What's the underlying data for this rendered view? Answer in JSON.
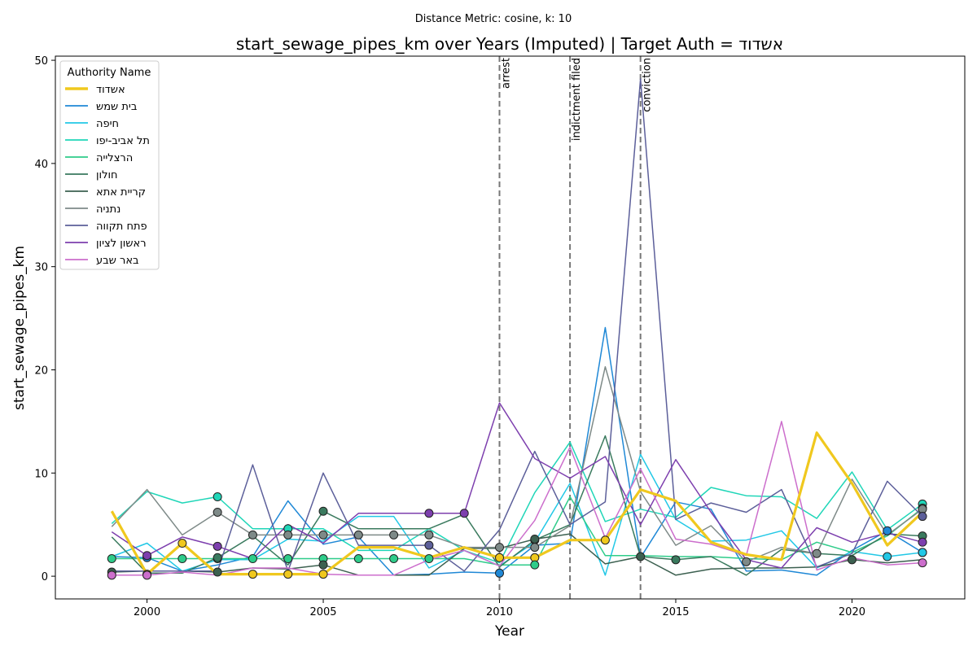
{
  "suptitle": "Distance Metric: cosine, k: 10",
  "chart_data": {
    "type": "line",
    "title": "start_sewage_pipes_km over Years (Imputed) | Target Auth = אשדוד",
    "xlabel": "Year",
    "ylabel": "start_sewage_pipes_km",
    "xlim": [
      1997.4,
      2023.2
    ],
    "ylim": [
      -2.2,
      50.4
    ],
    "x_ticks": [
      2000,
      2005,
      2010,
      2015,
      2020
    ],
    "y_ticks": [
      0,
      10,
      20,
      30,
      40,
      50
    ],
    "grid": false,
    "legend": {
      "title": "Authority Name",
      "placement": "upper-left"
    },
    "x": [
      1999,
      2000,
      2001,
      2002,
      2003,
      2004,
      2005,
      2006,
      2007,
      2008,
      2009,
      2010,
      2011,
      2012,
      2013,
      2014,
      2015,
      2016,
      2017,
      2018,
      2019,
      2020,
      2021,
      2022
    ],
    "events": [
      {
        "label": "arrest",
        "x": 2010
      },
      {
        "label": "indictment filed",
        "x": 2012
      },
      {
        "label": "conviction",
        "x": 2014
      }
    ],
    "series": [
      {
        "name": "אשדוד",
        "color": "#f0c81e",
        "width": 3.2,
        "target": true,
        "values": [
          6.3,
          0.2,
          3.2,
          0.2,
          0.2,
          0.2,
          0.2,
          2.8,
          2.8,
          1.8,
          2.8,
          1.8,
          1.8,
          3.5,
          3.5,
          8.4,
          7.3,
          3.3,
          2.1,
          1.6,
          13.9,
          9.0,
          3.0,
          6.2
        ],
        "imputed": [
          1,
          2,
          4,
          5,
          6,
          11,
          12,
          14
        ]
      },
      {
        "name": "בית שמש",
        "color": "#1f88d6",
        "width": 1.5,
        "values": [
          1.9,
          1.8,
          0.5,
          1.1,
          1.9,
          7.3,
          3.1,
          3.8,
          0.1,
          0.2,
          0.4,
          0.3,
          3.0,
          3.2,
          24.1,
          1.8,
          7.2,
          6.5,
          0.5,
          0.6,
          0.1,
          2.5,
          4.4,
          2.3
        ],
        "imputed": [
          1,
          11,
          22,
          23
        ]
      },
      {
        "name": "חיפה",
        "color": "#22c8e6",
        "width": 1.5,
        "values": [
          1.9,
          3.2,
          0.5,
          1.6,
          1.6,
          3.6,
          3.4,
          5.8,
          5.8,
          0.8,
          2.5,
          1.0,
          3.3,
          9.0,
          0.1,
          11.8,
          5.5,
          3.4,
          3.5,
          4.4,
          0.8,
          2.4,
          1.9,
          2.3
        ],
        "imputed": [
          22,
          23
        ]
      },
      {
        "name": "תל אביב-יפו",
        "color": "#20d6b8",
        "width": 1.5,
        "values": [
          5.1,
          8.2,
          7.1,
          7.7,
          4.6,
          4.6,
          4.6,
          2.5,
          2.5,
          4.6,
          2.5,
          1.3,
          8.1,
          13.0,
          5.3,
          6.5,
          5.7,
          8.6,
          7.8,
          7.7,
          5.6,
          10.1,
          4.5,
          7.0
        ],
        "imputed": [
          3,
          5,
          23
        ]
      },
      {
        "name": "הרצלייה",
        "color": "#2ecc8a",
        "width": 1.5,
        "values": [
          1.7,
          1.7,
          1.7,
          1.7,
          1.7,
          1.7,
          1.7,
          1.7,
          1.7,
          1.7,
          1.7,
          1.1,
          1.1,
          7.7,
          2.0,
          2.0,
          1.9,
          1.9,
          1.7,
          1.6,
          3.3,
          2.3,
          3.9,
          6.6
        ],
        "imputed": [
          0,
          2,
          3,
          4,
          5,
          6,
          7,
          8,
          9,
          12,
          23
        ]
      },
      {
        "name": "חולון",
        "color": "#3a7a5e",
        "width": 1.5,
        "values": [
          3.8,
          0.3,
          0.3,
          1.8,
          3.9,
          1.1,
          6.3,
          4.6,
          4.6,
          4.6,
          6.0,
          0.9,
          3.5,
          5.0,
          13.6,
          1.9,
          1.6,
          1.9,
          0.1,
          2.6,
          2.2,
          2.0,
          4.1,
          3.9
        ],
        "imputed": [
          3,
          6,
          12,
          16,
          23
        ]
      },
      {
        "name": "קריית אתא",
        "color": "#3c6050",
        "width": 1.5,
        "values": [
          0.4,
          0.5,
          0.5,
          0.4,
          0.8,
          0.7,
          1.1,
          0.1,
          0.1,
          0.1,
          2.7,
          2.7,
          3.6,
          4.1,
          1.2,
          1.9,
          0.1,
          0.7,
          0.8,
          0.8,
          0.9,
          1.6,
          1.3,
          1.6
        ],
        "imputed": [
          0,
          3,
          6,
          12,
          15,
          21
        ]
      },
      {
        "name": "נתניה",
        "color": "#7e8a88",
        "width": 1.5,
        "values": [
          4.8,
          8.4,
          4.0,
          6.2,
          4.0,
          4.0,
          4.0,
          4.0,
          4.0,
          4.0,
          2.8,
          2.8,
          2.8,
          4.9,
          20.3,
          8.2,
          3.0,
          4.9,
          1.4,
          2.8,
          2.2,
          9.4,
          4.0,
          6.5
        ],
        "imputed": [
          3,
          4,
          5,
          6,
          7,
          8,
          9,
          11,
          12,
          18,
          20,
          23
        ]
      },
      {
        "name": "פתח תקווה",
        "color": "#5c5f9a",
        "width": 1.5,
        "values": [
          0.5,
          0.5,
          0.5,
          0.5,
          10.8,
          0.5,
          10.0,
          3.0,
          3.0,
          3.0,
          0.5,
          4.5,
          12.1,
          5.0,
          7.2,
          48.2,
          5.5,
          7.1,
          6.2,
          8.4,
          0.9,
          2.2,
          9.2,
          5.8
        ],
        "imputed": [
          9,
          23
        ]
      },
      {
        "name": "ראשון לציון",
        "color": "#7d3fae",
        "width": 1.5,
        "values": [
          4.3,
          2.0,
          3.8,
          2.9,
          1.7,
          5.0,
          3.2,
          6.1,
          6.1,
          6.1,
          6.1,
          16.8,
          11.4,
          9.5,
          11.6,
          5.0,
          11.3,
          6.2,
          1.6,
          0.8,
          4.7,
          3.3,
          4.2,
          3.3
        ],
        "imputed": [
          1,
          3,
          9,
          10,
          23
        ]
      },
      {
        "name": "באר שבע",
        "color": "#cc6ecc",
        "width": 1.5,
        "values": [
          0.1,
          0.1,
          0.4,
          0.1,
          0.8,
          0.8,
          0.2,
          0.1,
          0.1,
          1.6,
          2.5,
          1.0,
          5.4,
          12.5,
          3.7,
          10.4,
          3.6,
          3.1,
          2.0,
          15.0,
          0.6,
          1.8,
          1.1,
          1.3
        ],
        "imputed": [
          0,
          1,
          23
        ]
      }
    ]
  }
}
